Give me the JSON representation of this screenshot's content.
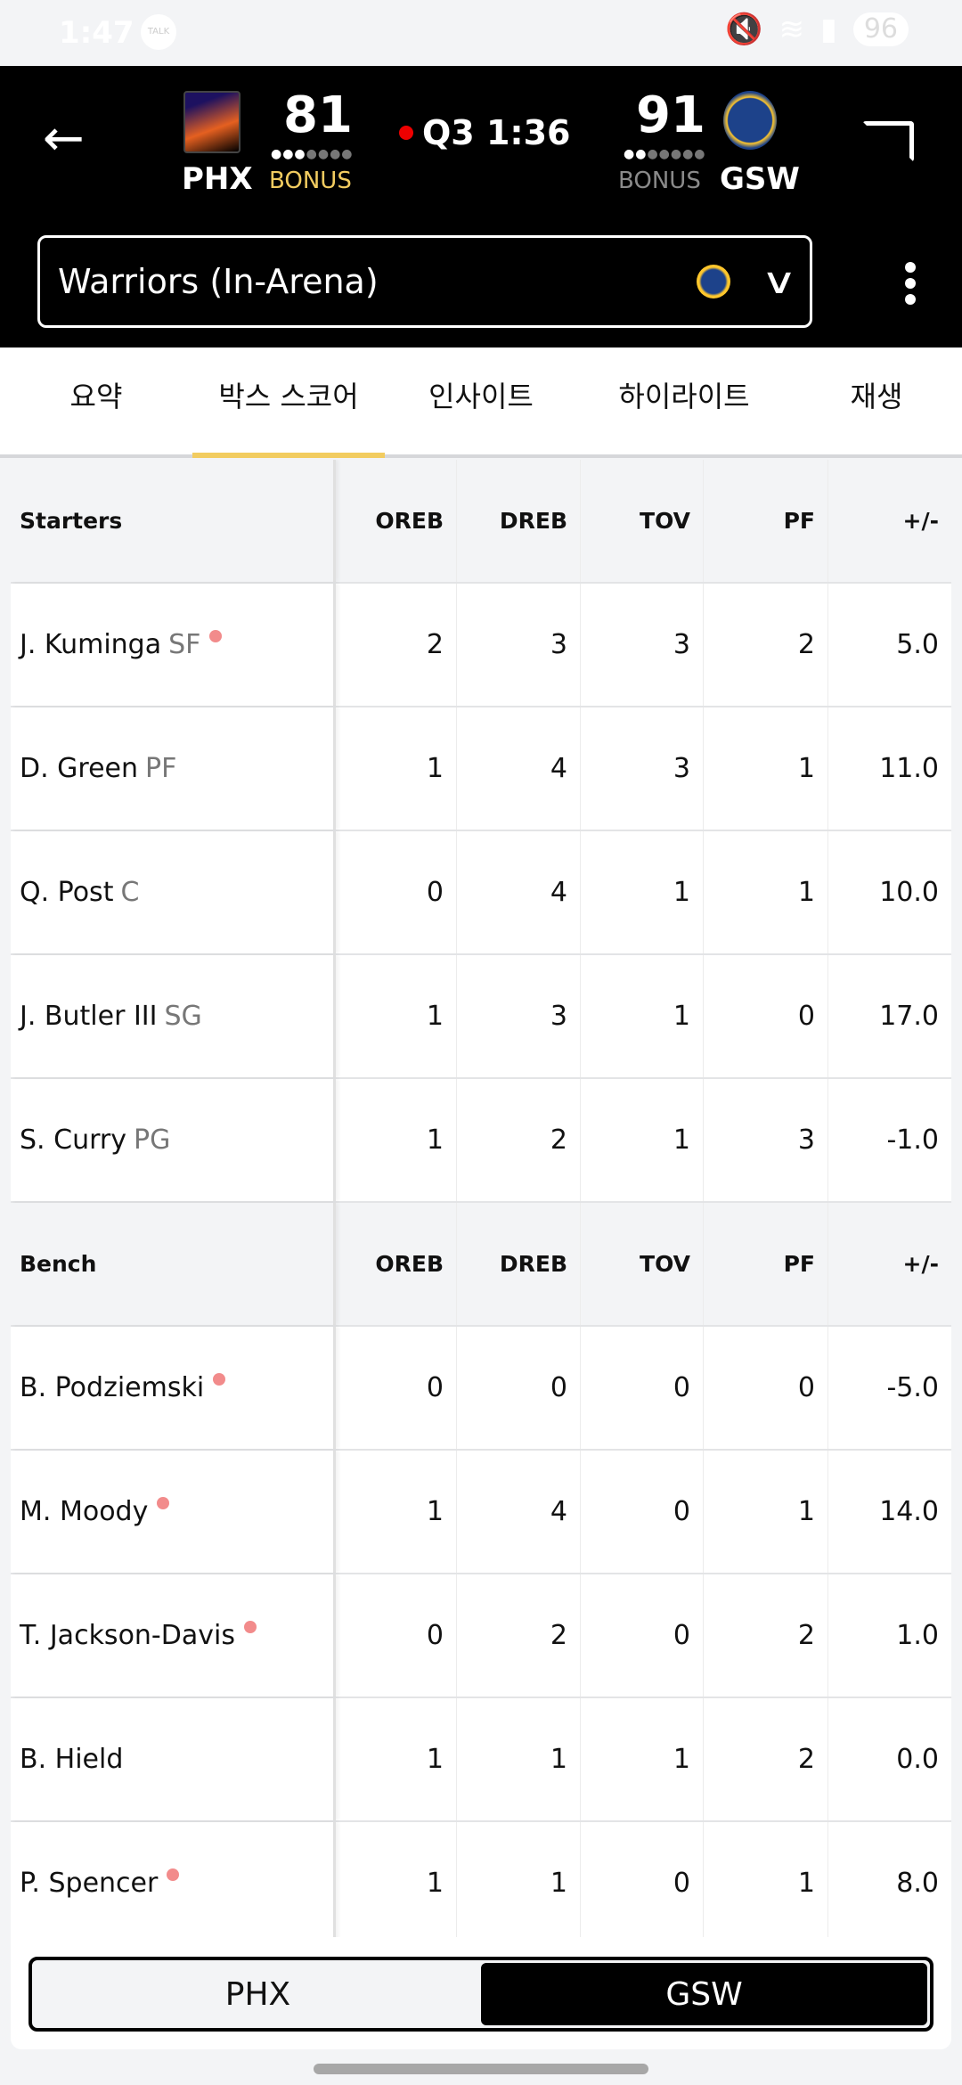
{
  "status": {
    "time": "1:47",
    "notif": "TALK",
    "battery": "96"
  },
  "game": {
    "clock": "Q3 1:36",
    "home": {
      "abbr": "PHX",
      "score": "81",
      "bonus": "BONUS",
      "bonus_color": "#f2cc60"
    },
    "away": {
      "abbr": "GSW",
      "score": "91",
      "bonus": "BONUS",
      "bonus_color": "#8a8a8a"
    }
  },
  "feed": {
    "label": "Warriors (In-Arena)"
  },
  "tabs": [
    {
      "label": "요약"
    },
    {
      "label": "박스 스코어",
      "active": true
    },
    {
      "label": "인사이트"
    },
    {
      "label": "하이라이트"
    },
    {
      "label": "재생"
    }
  ],
  "columns": [
    "OREB",
    "DREB",
    "TOV",
    "PF",
    "+/-"
  ],
  "starters": {
    "title": "Starters",
    "rows": [
      {
        "name": "J. Kuminga",
        "pos": "SF",
        "on_court": true,
        "stats": [
          "2",
          "3",
          "3",
          "2",
          "5.0"
        ]
      },
      {
        "name": "D. Green",
        "pos": "PF",
        "on_court": false,
        "stats": [
          "1",
          "4",
          "3",
          "1",
          "11.0"
        ]
      },
      {
        "name": "Q. Post",
        "pos": "C",
        "on_court": false,
        "stats": [
          "0",
          "4",
          "1",
          "1",
          "10.0"
        ]
      },
      {
        "name": "J. Butler III",
        "pos": "SG",
        "on_court": false,
        "stats": [
          "1",
          "3",
          "1",
          "0",
          "17.0"
        ]
      },
      {
        "name": "S. Curry",
        "pos": "PG",
        "on_court": false,
        "stats": [
          "1",
          "2",
          "1",
          "3",
          "-1.0"
        ]
      }
    ]
  },
  "bench": {
    "title": "Bench",
    "rows": [
      {
        "name": "B. Podziemski",
        "pos": "",
        "on_court": true,
        "stats": [
          "0",
          "0",
          "0",
          "0",
          "-5.0"
        ]
      },
      {
        "name": "M. Moody",
        "pos": "",
        "on_court": true,
        "stats": [
          "1",
          "4",
          "0",
          "1",
          "14.0"
        ]
      },
      {
        "name": "T. Jackson-Davis",
        "pos": "",
        "on_court": true,
        "stats": [
          "0",
          "2",
          "0",
          "2",
          "1.0"
        ]
      },
      {
        "name": "B. Hield",
        "pos": "",
        "on_court": false,
        "stats": [
          "1",
          "1",
          "1",
          "2",
          "0.0"
        ]
      },
      {
        "name": "P. Spencer",
        "pos": "",
        "on_court": true,
        "stats": [
          "1",
          "1",
          "0",
          "1",
          "8.0"
        ]
      }
    ]
  },
  "team_toggle": {
    "options": [
      "PHX",
      "GSW"
    ],
    "selected": "GSW"
  }
}
